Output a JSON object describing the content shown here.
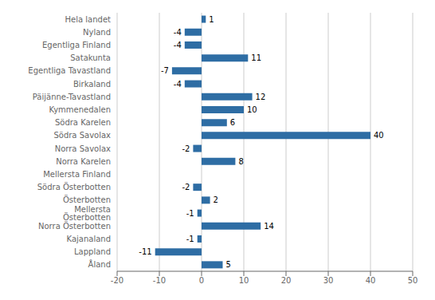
{
  "chart_data": {
    "type": "bar",
    "orientation": "horizontal",
    "categories": [
      "Hela landet",
      "Nyland",
      "Egentliga Finland",
      "Satakunta",
      "Egentliga Tavastland",
      "Birkaland",
      "Päijänne-Tavastland",
      "Kymmenedalen",
      "Södra Karelen",
      "Södra Savolax",
      "Norra Savolax",
      "Norra Karelen",
      "Mellersta Finland",
      "Södra Österbotten",
      "Österbotten",
      "Mellersta Österbotten",
      "Norra Österbotten",
      "Kajanaland",
      "Lappland",
      "Åland"
    ],
    "values": [
      1,
      -4,
      -4,
      11,
      -7,
      -4,
      12,
      10,
      6,
      40,
      -2,
      8,
      0,
      -2,
      2,
      -1,
      14,
      -1,
      -11,
      5
    ],
    "color": "#2E6DA4",
    "xlim": [
      -20,
      50
    ],
    "xticks": [
      -20,
      -10,
      0,
      10,
      20,
      30,
      40,
      50
    ],
    "grid": true,
    "data_labels": true
  }
}
